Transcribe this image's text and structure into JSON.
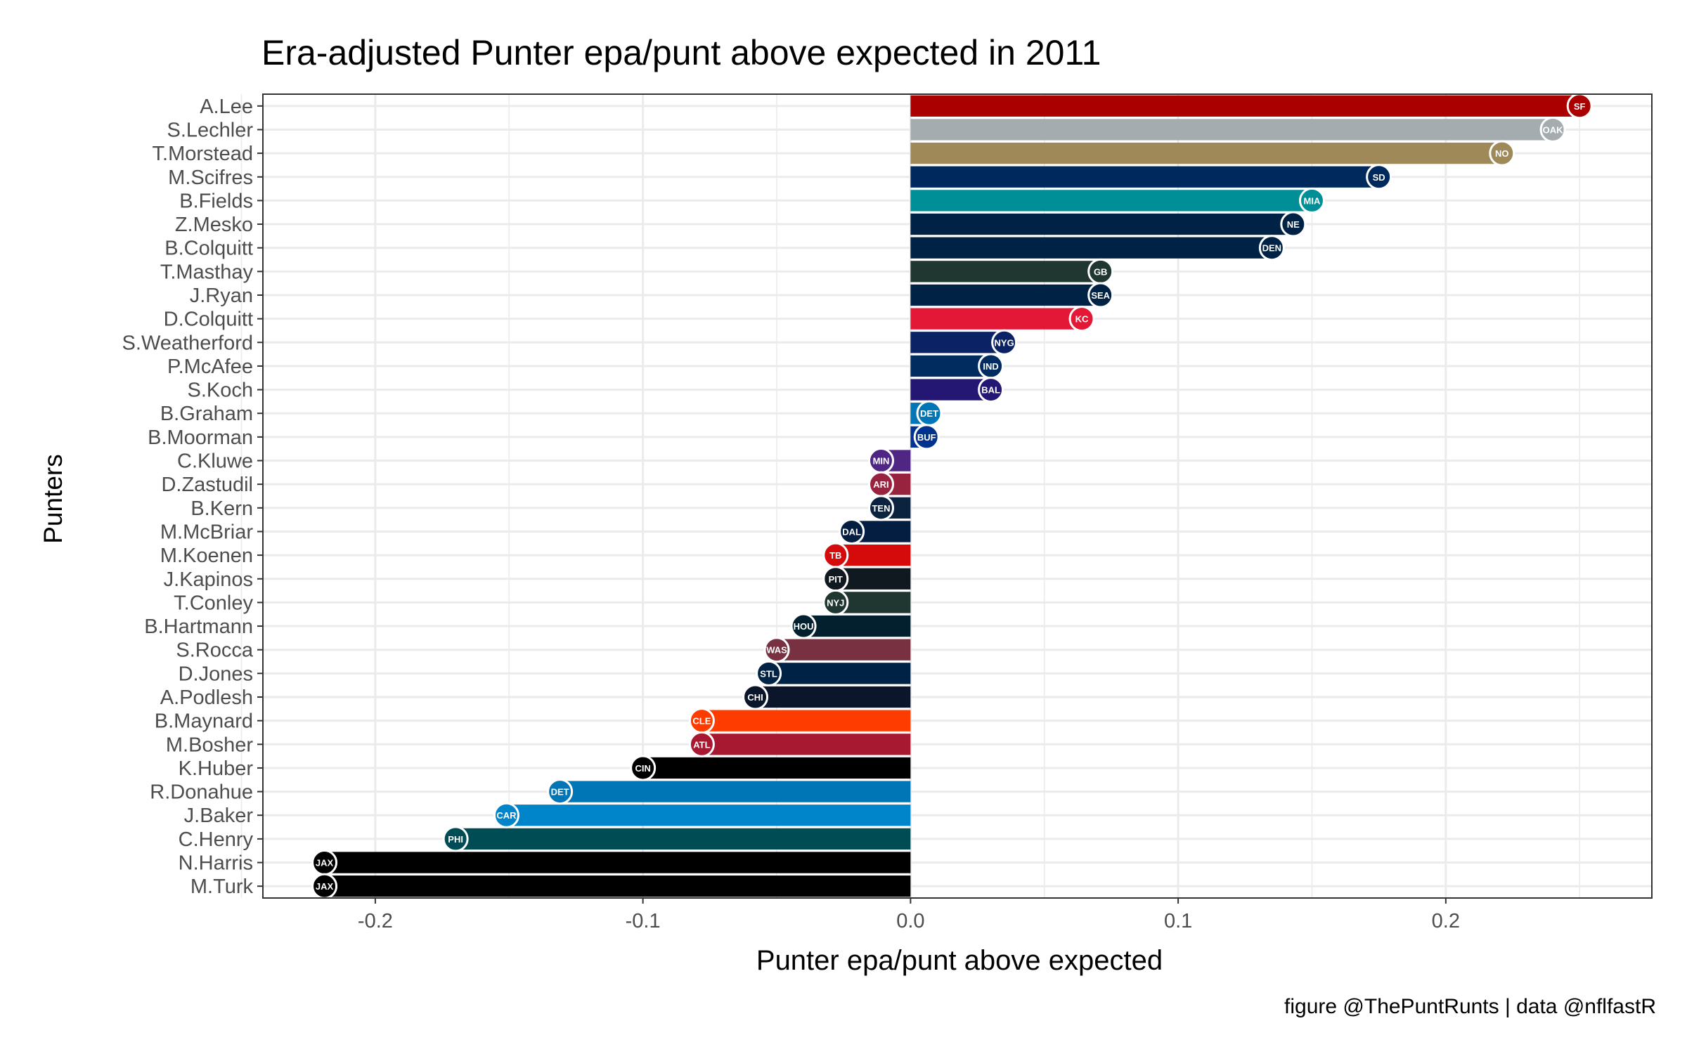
{
  "chart_data": {
    "type": "bar",
    "orientation": "horizontal",
    "title": "Era-adjusted Punter epa/punt above expected in 2011",
    "xlabel": "Punter epa/punt above expected",
    "ylabel": "Punters",
    "caption": "figure @ThePuntRunts | data @nflfastR",
    "xlim": [
      -0.242,
      0.277
    ],
    "xticks": [
      -0.2,
      -0.1,
      0.0,
      0.1,
      0.2
    ],
    "xtick_labels": [
      "-0.2",
      "-0.1",
      "0.0",
      "0.1",
      "0.2"
    ],
    "grid": true,
    "legend": "none",
    "categories": [
      "A.Lee",
      "S.Lechler",
      "T.Morstead",
      "M.Scifres",
      "B.Fields",
      "Z.Mesko",
      "B.Colquitt",
      "T.Masthay",
      "J.Ryan",
      "D.Colquitt",
      "S.Weatherford",
      "P.McAfee",
      "S.Koch",
      "B.Graham",
      "B.Moorman",
      "C.Kluwe",
      "D.Zastudil",
      "B.Kern",
      "M.McBriar",
      "M.Koenen",
      "J.Kapinos",
      "T.Conley",
      "B.Hartmann",
      "S.Rocca",
      "D.Jones",
      "A.Podlesh",
      "B.Maynard",
      "M.Bosher",
      "K.Huber",
      "R.Donahue",
      "J.Baker",
      "C.Henry",
      "N.Harris",
      "M.Turk"
    ],
    "values": [
      0.25,
      0.24,
      0.221,
      0.175,
      0.15,
      0.143,
      0.135,
      0.071,
      0.071,
      0.064,
      0.035,
      0.03,
      0.03,
      0.007,
      0.006,
      -0.011,
      -0.011,
      -0.011,
      -0.022,
      -0.028,
      -0.028,
      -0.028,
      -0.04,
      -0.05,
      -0.053,
      -0.058,
      -0.078,
      -0.078,
      -0.1,
      -0.131,
      -0.151,
      -0.17,
      -0.219,
      -0.219
    ],
    "teams": [
      "SF",
      "OAK",
      "NO",
      "SD",
      "MIA",
      "NE",
      "DEN",
      "GB",
      "SEA",
      "KC",
      "NYG",
      "IND",
      "BAL",
      "DET",
      "BUF",
      "MIN",
      "ARI",
      "TEN",
      "DAL",
      "TB",
      "PIT",
      "NYJ",
      "HOU",
      "WAS",
      "STL",
      "CHI",
      "CLE",
      "ATL",
      "CIN",
      "DET",
      "CAR",
      "PHI",
      "JAX",
      "JAX"
    ],
    "colors": [
      "#AA0000",
      "#A5ACAF",
      "#9F8958",
      "#002A5E",
      "#008E97",
      "#002244",
      "#002244",
      "#203731",
      "#002244",
      "#E31837",
      "#0B2265",
      "#002C5F",
      "#241773",
      "#0076B6",
      "#00338D",
      "#4F2683",
      "#97233F",
      "#0C2340",
      "#041E42",
      "#D50A0A",
      "#101820",
      "#203731",
      "#03202F",
      "#773141",
      "#002244",
      "#0B162A",
      "#FF3C00",
      "#A71930",
      "#000000",
      "#0076B6",
      "#0085CA",
      "#004C54",
      "#000000",
      "#000000"
    ],
    "logos": [
      "sf-logo-icon",
      "oakland-raiders-logo-icon",
      "new-orleans-logo-icon",
      "san-diego-logo-icon",
      "miami-logo-icon",
      "new-england-logo-icon",
      "denver-logo-icon",
      "green-bay-logo-icon",
      "seattle-logo-icon",
      "kansas-city-logo-icon",
      "ny-giants-logo-icon",
      "indianapolis-logo-icon",
      "baltimore-logo-icon",
      "detroit-logo-icon",
      "buffalo-logo-icon",
      "minnesota-logo-icon",
      "arizona-logo-icon",
      "tennessee-logo-icon",
      "dallas-logo-icon",
      "tampa-bay-logo-icon",
      "pittsburgh-logo-icon",
      "ny-jets-logo-icon",
      "houston-logo-icon",
      "washington-logo-icon",
      "st-louis-logo-icon",
      "chicago-logo-icon",
      "cleveland-logo-icon",
      "atlanta-logo-icon",
      "cincinnati-logo-icon",
      "detroit-logo-icon",
      "carolina-logo-icon",
      "philadelphia-logo-icon",
      "jacksonville-logo-icon",
      "jacksonville-logo-icon"
    ]
  }
}
